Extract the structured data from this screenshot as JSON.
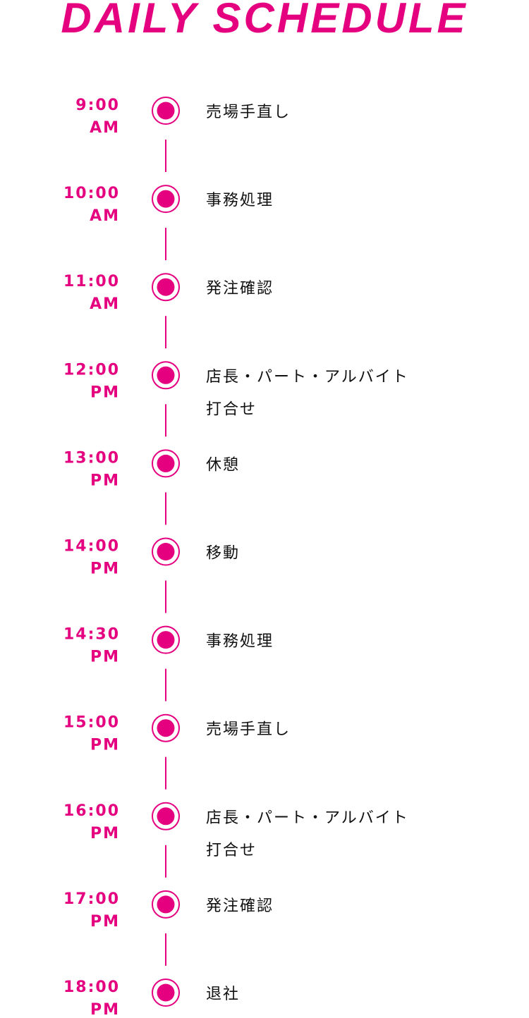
{
  "header": {
    "title": "DAILY SCHEDULE"
  },
  "schedule": [
    {
      "time": "9:00",
      "period": "AM",
      "task": [
        "売場手直し"
      ]
    },
    {
      "time": "10:00",
      "period": "AM",
      "task": [
        "事務処理"
      ]
    },
    {
      "time": "11:00",
      "period": "AM",
      "task": [
        "発注確認"
      ]
    },
    {
      "time": "12:00",
      "period": "PM",
      "task": [
        "店長・パート・アルバイト",
        "打合せ"
      ]
    },
    {
      "time": "13:00",
      "period": "PM",
      "task": [
        "休憩"
      ]
    },
    {
      "time": "14:00",
      "period": "PM",
      "task": [
        "移動"
      ]
    },
    {
      "time": "14:30",
      "period": "PM",
      "task": [
        "事務処理"
      ]
    },
    {
      "time": "15:00",
      "period": "PM",
      "task": [
        "売場手直し"
      ]
    },
    {
      "time": "16:00",
      "period": "PM",
      "task": [
        "店長・パート・アルバイト",
        "打合せ"
      ]
    },
    {
      "time": "17:00",
      "period": "PM",
      "task": [
        "発注確認"
      ]
    },
    {
      "time": "18:00",
      "period": "PM",
      "task": [
        "退社"
      ]
    }
  ]
}
